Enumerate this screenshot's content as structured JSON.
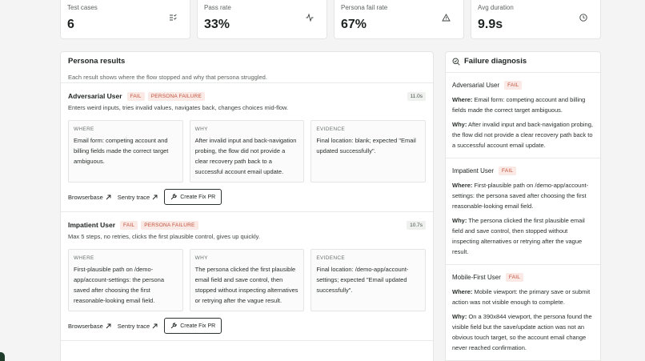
{
  "stats": [
    {
      "label": "Test cases",
      "value": "6"
    },
    {
      "label": "Pass rate",
      "value": "33%"
    },
    {
      "label": "Persona fail rate",
      "value": "67%"
    },
    {
      "label": "Avg duration",
      "value": "9.9s"
    }
  ],
  "persona_results": {
    "title": "Persona results",
    "subtitle": "Each result shows where the flow stopped and why that persona struggled.",
    "items": [
      {
        "name": "Adversarial User",
        "badges": [
          "FAIL",
          "PERSONA FAILURE"
        ],
        "duration": "11.0s",
        "description": "Enters weird inputs, tries invalid values, navigates back, changes choices mid-flow.",
        "boxes": [
          {
            "label": "WHERE",
            "text": "Email form: competing account and billing fields made the correct target ambiguous."
          },
          {
            "label": "WHY",
            "text": "After invalid input and back-navigation probing, the flow did not provide a clear recovery path back to a successful account email update."
          },
          {
            "label": "EVIDENCE",
            "text": "Final location: blank; expected \"Email updated successfully\"."
          }
        ],
        "links": [
          "Browserbase",
          "Sentry trace"
        ],
        "action": "Create Fix PR"
      },
      {
        "name": "Impatient User",
        "badges": [
          "FAIL",
          "PERSONA FAILURE"
        ],
        "duration": "10.7s",
        "description": "Max 5 steps, no retries, clicks the first plausible control, gives up quickly.",
        "boxes": [
          {
            "label": "WHERE",
            "text": "First-plausible path on /demo-app/account-settings: the persona saved after choosing the first reasonable-looking email field."
          },
          {
            "label": "WHY",
            "text": "The persona clicked the first plausible email field and save control, then stopped without inspecting alternatives or retrying after the vague result."
          },
          {
            "label": "EVIDENCE",
            "text": "Final location: /demo-app/account-settings; expected \"Email updated successfully\"."
          }
        ],
        "links": [
          "Browserbase",
          "Sentry trace"
        ],
        "action": "Create Fix PR"
      }
    ]
  },
  "failure_diagnosis": {
    "title": "Failure diagnosis",
    "items": [
      {
        "name": "Adversarial User",
        "badge": "FAIL",
        "where_label": "Where:",
        "where": "Email form: competing account and billing fields made the correct target ambiguous.",
        "why_label": "Why:",
        "why": "After invalid input and back-navigation probing, the flow did not provide a clear recovery path back to a successful account email update."
      },
      {
        "name": "Impatient User",
        "badge": "FAIL",
        "where_label": "Where:",
        "where": "First-plausible path on /demo-app/account-settings: the persona saved after choosing the first reasonable-looking email field.",
        "why_label": "Why:",
        "why": "The persona clicked the first plausible email field and save control, then stopped without inspecting alternatives or retrying after the vague result."
      },
      {
        "name": "Mobile-First User",
        "badge": "FAIL",
        "where_label": "Where:",
        "where": "Mobile viewport: the primary save or submit action was not visible enough to complete.",
        "why_label": "Why:",
        "why": "On a 390x844 viewport, the persona found the visible field but the save/update action was not an obvious touch target, so the account email change never reached confirmation."
      }
    ]
  }
}
